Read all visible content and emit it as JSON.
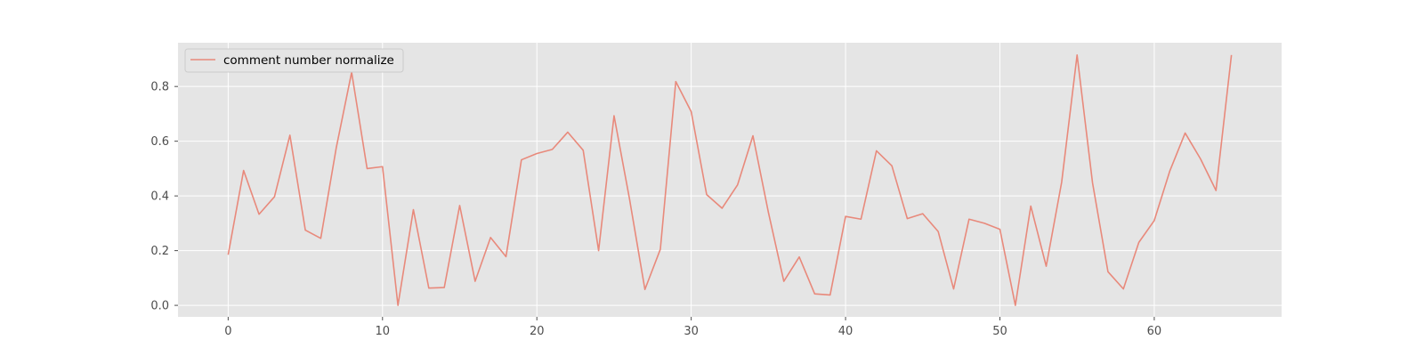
{
  "chart_data": {
    "type": "line",
    "title": "",
    "xlabel": "",
    "ylabel": "",
    "xlim": [
      -3.25,
      68.25
    ],
    "ylim": [
      -0.042,
      0.96
    ],
    "x_ticks": [
      0,
      10,
      20,
      30,
      40,
      50,
      60
    ],
    "y_ticks": [
      0.0,
      0.2,
      0.4,
      0.6,
      0.8
    ],
    "y_tick_labels": [
      "0.0",
      "0.2",
      "0.4",
      "0.6",
      "0.8"
    ],
    "grid": true,
    "legend_position": "upper-left",
    "series": [
      {
        "name": "comment number normalize",
        "color": "#e8897b",
        "x": [
          0,
          1,
          2,
          3,
          4,
          5,
          6,
          7,
          8,
          9,
          10,
          11,
          12,
          13,
          14,
          15,
          16,
          17,
          18,
          19,
          20,
          21,
          22,
          23,
          24,
          25,
          26,
          27,
          28,
          29,
          30,
          31,
          32,
          33,
          34,
          35,
          36,
          37,
          38,
          39,
          40,
          41,
          42,
          43,
          44,
          45,
          46,
          47,
          48,
          49,
          50,
          51,
          52,
          53,
          54,
          55,
          56,
          57,
          58,
          59,
          60,
          61,
          62,
          63,
          64,
          65
        ],
        "values": [
          0.185,
          0.493,
          0.333,
          0.397,
          0.622,
          0.275,
          0.245,
          0.575,
          0.852,
          0.5,
          0.507,
          0.0,
          0.35,
          0.063,
          0.065,
          0.365,
          0.088,
          0.248,
          0.178,
          0.532,
          0.555,
          0.57,
          0.633,
          0.567,
          0.2,
          0.693,
          0.39,
          0.058,
          0.205,
          0.818,
          0.708,
          0.405,
          0.355,
          0.44,
          0.62,
          0.34,
          0.088,
          0.177,
          0.042,
          0.038,
          0.325,
          0.315,
          0.565,
          0.51,
          0.317,
          0.335,
          0.27,
          0.06,
          0.315,
          0.3,
          0.278,
          0.0,
          0.363,
          0.143,
          0.45,
          0.915,
          0.448,
          0.123,
          0.06,
          0.23,
          0.31,
          0.49,
          0.63,
          0.535,
          0.42,
          0.915
        ]
      }
    ]
  },
  "colors": {
    "plot_background": "#e5e5e5",
    "grid": "#ffffff",
    "line": "#e8897b",
    "tick": "#4d4d4d"
  }
}
